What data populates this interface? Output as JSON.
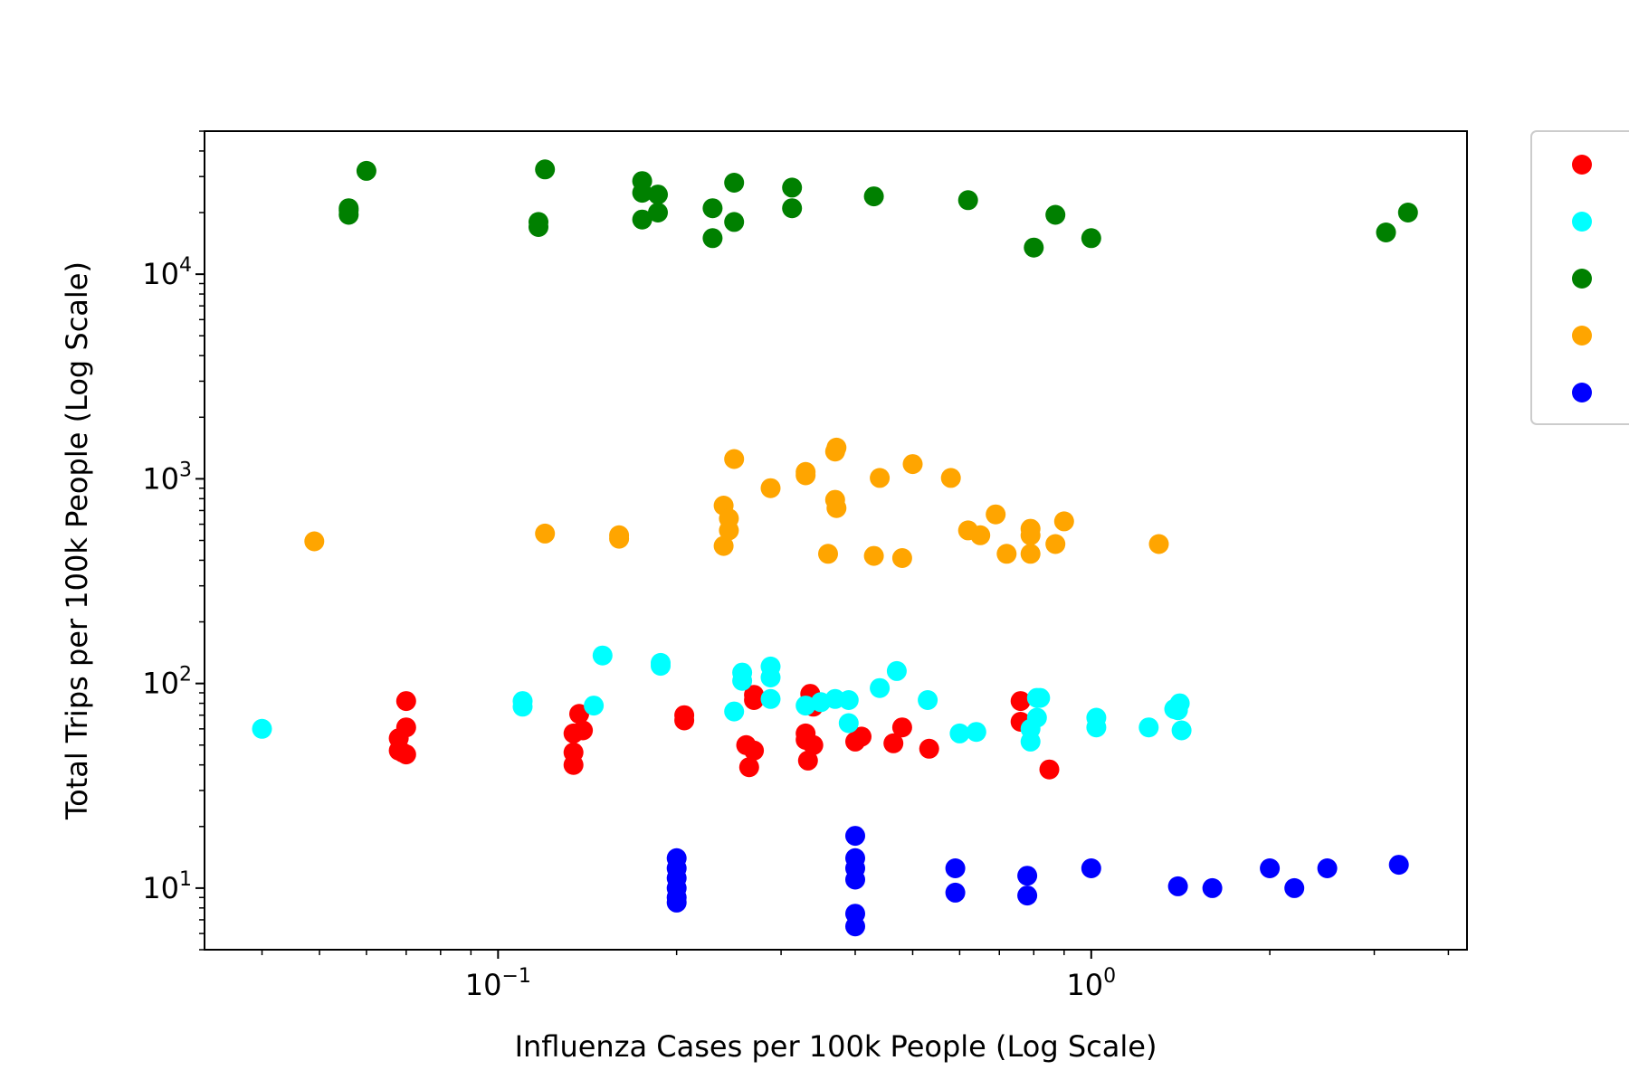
{
  "chart_data": {
    "type": "scatter",
    "title": "",
    "xlabel": "Influenza Cases per 100k People (Log Scale)",
    "ylabel": "Total Trips per 100k People (Log Scale)",
    "xscale": "log",
    "yscale": "log",
    "xlim": [
      0.032,
      4.3
    ],
    "ylim": [
      5.0,
      50000
    ],
    "grid": false,
    "legend_position": "outside-right",
    "x_ticks": [
      {
        "value": 0.1,
        "base": "10",
        "exp": "−1"
      },
      {
        "value": 1,
        "base": "10",
        "exp": "0"
      }
    ],
    "y_ticks": [
      {
        "value": 10,
        "base": "10",
        "exp": "1"
      },
      {
        "value": 100,
        "base": "10",
        "exp": "2"
      },
      {
        "value": 1000,
        "base": "10",
        "exp": "3"
      },
      {
        "value": 10000,
        "base": "10",
        "exp": "4"
      }
    ],
    "series": [
      {
        "color": "#ff0000",
        "x": [
          0.068,
          0.068,
          0.069,
          0.07,
          0.07,
          0.07,
          0.134,
          0.134,
          0.134,
          0.137,
          0.139,
          0.206,
          0.206,
          0.262,
          0.265,
          0.27,
          0.27,
          0.27,
          0.33,
          0.33,
          0.333,
          0.336,
          0.34,
          0.34,
          0.4,
          0.41,
          0.464,
          0.48,
          0.533,
          0.76,
          0.76,
          0.85
        ],
        "y": [
          54,
          47,
          46,
          61,
          45,
          82,
          57,
          46,
          40,
          71,
          59,
          70,
          66,
          50,
          39,
          47,
          88,
          83,
          57,
          53,
          42,
          89,
          77,
          50,
          52,
          55,
          51,
          61,
          48,
          82,
          65,
          38
        ]
      },
      {
        "color": "#00ffff",
        "x": [
          0.04,
          0.11,
          0.11,
          0.145,
          0.15,
          0.188,
          0.188,
          0.25,
          0.258,
          0.258,
          0.288,
          0.288,
          0.288,
          0.33,
          0.35,
          0.37,
          0.39,
          0.39,
          0.44,
          0.47,
          0.53,
          0.6,
          0.64,
          0.79,
          0.79,
          0.81,
          0.81,
          0.82,
          1.02,
          1.02,
          1.25,
          1.38,
          1.4,
          1.41,
          1.42
        ],
        "y": [
          60,
          82,
          77,
          78,
          137,
          126,
          122,
          73,
          113,
          103,
          121,
          107,
          84,
          78,
          81,
          84,
          83,
          64,
          95,
          115,
          83,
          57,
          58,
          52,
          60,
          85,
          68,
          85,
          68,
          61,
          61,
          75,
          74,
          80,
          59
        ]
      },
      {
        "color": "#008000",
        "x": [
          0.056,
          0.056,
          0.056,
          0.06,
          0.117,
          0.117,
          0.12,
          0.175,
          0.175,
          0.175,
          0.186,
          0.186,
          0.23,
          0.23,
          0.25,
          0.25,
          0.313,
          0.313,
          0.43,
          0.62,
          0.8,
          0.87,
          1.0,
          3.14,
          3.42
        ],
        "y": [
          21000,
          20500,
          19500,
          32000,
          18000,
          17000,
          32500,
          28500,
          25000,
          18500,
          20000,
          24500,
          21000,
          15000,
          28000,
          18000,
          26500,
          21000,
          24000,
          23000,
          13500,
          19500,
          15000,
          16000,
          20000
        ]
      },
      {
        "color": "#ffa500",
        "x": [
          0.049,
          0.12,
          0.16,
          0.16,
          0.24,
          0.24,
          0.245,
          0.245,
          0.25,
          0.288,
          0.33,
          0.33,
          0.36,
          0.37,
          0.37,
          0.372,
          0.372,
          0.43,
          0.44,
          0.48,
          0.5,
          0.58,
          0.62,
          0.65,
          0.69,
          0.72,
          0.79,
          0.79,
          0.79,
          0.87,
          0.9,
          1.3
        ],
        "y": [
          495,
          540,
          510,
          530,
          740,
          470,
          640,
          560,
          1250,
          900,
          1040,
          1080,
          430,
          790,
          1360,
          720,
          1420,
          420,
          1010,
          410,
          1180,
          1010,
          560,
          530,
          670,
          430,
          570,
          530,
          430,
          480,
          620,
          480
        ]
      },
      {
        "color": "#0000ff",
        "x": [
          0.2,
          0.2,
          0.2,
          0.2,
          0.2,
          0.2,
          0.4,
          0.4,
          0.4,
          0.4,
          0.4,
          0.4,
          0.59,
          0.59,
          0.78,
          0.78,
          1.0,
          1.4,
          1.6,
          2.0,
          2.2,
          2.5,
          3.3
        ],
        "y": [
          14,
          12.5,
          11.2,
          10,
          9,
          8.5,
          18,
          14,
          12.5,
          11,
          7.5,
          6.5,
          12.5,
          9.5,
          11.5,
          9.2,
          12.5,
          10.2,
          10,
          12.5,
          10,
          12.5,
          13
        ]
      }
    ]
  }
}
